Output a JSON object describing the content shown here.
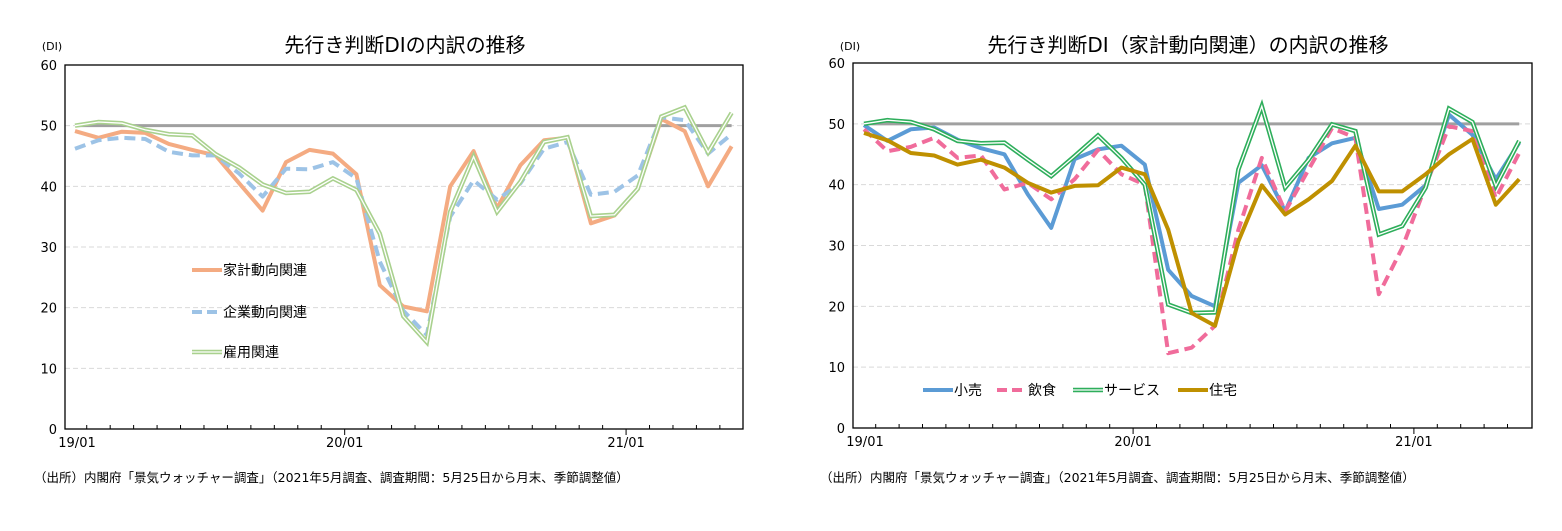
{
  "chart_data": [
    {
      "type": "line",
      "title": "先行き判断DIの内訳の推移",
      "ylabel": "(DI)",
      "ylim": [
        0,
        60
      ],
      "yticks": [
        "0",
        "10",
        "20",
        "30",
        "40",
        "50",
        "60"
      ],
      "x": [
        "19/01",
        "19/02",
        "19/03",
        "19/04",
        "19/05",
        "19/06",
        "19/07",
        "19/08",
        "19/09",
        "19/10",
        "19/11",
        "19/12",
        "20/01",
        "20/02",
        "20/03",
        "20/04",
        "20/05",
        "20/06",
        "20/07",
        "20/08",
        "20/09",
        "20/10",
        "20/11",
        "20/12",
        "21/01",
        "21/02",
        "21/03",
        "21/04",
        "21/05"
      ],
      "xtick_labels": [
        "19/01",
        "20/01",
        "21/01"
      ],
      "reference_line": 50,
      "grid": true,
      "legend_position": "center-left",
      "series": [
        {
          "name": "家計動向関連",
          "color": "#F4AB82",
          "style": "solid",
          "values": [
            49.1,
            48,
            49,
            48.8,
            47,
            46,
            45.1,
            40.5,
            36,
            44,
            46,
            45.4,
            42,
            23.7,
            20.2,
            19.4,
            40,
            45.8,
            36.4,
            43.5,
            47.6,
            48,
            33.9,
            35.2,
            39.6,
            51.1,
            49.1,
            40,
            46.6
          ]
        },
        {
          "name": "企業動向関連",
          "color": "#9DC3E6",
          "style": "dashed",
          "values": [
            46.2,
            47.6,
            48,
            47.8,
            45.7,
            45.1,
            45.1,
            42.1,
            38.3,
            42.9,
            42.8,
            44,
            41.3,
            27.6,
            19.5,
            15.5,
            35,
            41,
            37.8,
            40.5,
            46.2,
            47.3,
            38.6,
            39.1,
            41.8,
            51.4,
            50.9,
            45.4,
            48.6
          ]
        },
        {
          "name": "雇用関連",
          "color": "#A9D18E",
          "style": "double",
          "values": [
            50,
            50.6,
            50.4,
            49.3,
            48.6,
            48.4,
            45.3,
            43.1,
            40.3,
            38.9,
            39.1,
            41.3,
            39.4,
            32.2,
            18.6,
            14.3,
            35.8,
            44.9,
            35.8,
            40.8,
            47.3,
            48.1,
            35.1,
            35.3,
            39.6,
            51.5,
            53,
            45.6,
            52.1
          ]
        }
      ]
    },
    {
      "type": "line",
      "title": "先行き判断DI（家計動向関連）の内訳の推移",
      "ylabel": "(DI)",
      "ylim": [
        0,
        60
      ],
      "yticks": [
        "0",
        "10",
        "20",
        "30",
        "40",
        "50",
        "60"
      ],
      "x": [
        "19/01",
        "19/02",
        "19/03",
        "19/04",
        "19/05",
        "19/06",
        "19/07",
        "19/08",
        "19/09",
        "19/10",
        "19/11",
        "19/12",
        "20/01",
        "20/02",
        "20/03",
        "20/04",
        "20/05",
        "20/06",
        "20/07",
        "20/08",
        "20/09",
        "20/10",
        "20/11",
        "20/12",
        "21/01",
        "21/02",
        "21/03",
        "21/04",
        "21/05"
      ],
      "xtick_labels": [
        "19/01",
        "20/01",
        "21/01"
      ],
      "reference_line": 50,
      "grid": true,
      "legend_position": "bottom",
      "series": [
        {
          "name": "小売",
          "color": "#5B9BD5",
          "style": "solid",
          "values": [
            49.8,
            47.2,
            49.1,
            49.4,
            47.4,
            46,
            45,
            38.4,
            32.9,
            44.2,
            45.8,
            46.4,
            43.3,
            26,
            21.7,
            20,
            40.3,
            43.2,
            35.6,
            44.4,
            46.8,
            47.7,
            36,
            36.7,
            39.9,
            51.5,
            48.2,
            40.9,
            46.9
          ]
        },
        {
          "name": "飲食",
          "color": "#F06C9B",
          "style": "dashed",
          "values": [
            49.1,
            45.5,
            46.2,
            47.7,
            44.4,
            44.8,
            39.2,
            40.3,
            37.6,
            40.9,
            45.7,
            41.7,
            40,
            12.3,
            13.2,
            16.8,
            32.6,
            44.4,
            35.6,
            42.5,
            49.3,
            47.7,
            22,
            29.6,
            39.8,
            49.6,
            48.8,
            37.8,
            45.2
          ]
        },
        {
          "name": "サービス",
          "color": "#2EAE5B",
          "style": "double",
          "values": [
            50,
            50.6,
            50.3,
            49.1,
            47.2,
            46.8,
            46.9,
            44.1,
            41.4,
            44.7,
            48.1,
            44.4,
            40,
            20.3,
            18.9,
            19,
            42.5,
            52.9,
            39.5,
            44.1,
            49.9,
            48.8,
            31.8,
            33.2,
            39.5,
            52.5,
            50.3,
            39.8,
            47.2
          ]
        },
        {
          "name": "住宅",
          "color": "#BF9000",
          "style": "solid",
          "values": [
            48.5,
            47.3,
            45.2,
            44.8,
            43.3,
            44.1,
            42.8,
            40.3,
            38.7,
            39.8,
            39.9,
            42.8,
            41.7,
            32.6,
            18.9,
            16.8,
            30.7,
            39.9,
            35.1,
            37.6,
            40.6,
            46.4,
            38.9,
            38.9,
            41.7,
            45,
            47.5,
            36.7,
            40.9
          ]
        }
      ]
    }
  ],
  "source_note": "（出所）内閣府「景気ウォッチャー調査」（2021年5月調査、調査期間：5月25日から月末、季節調整値）"
}
